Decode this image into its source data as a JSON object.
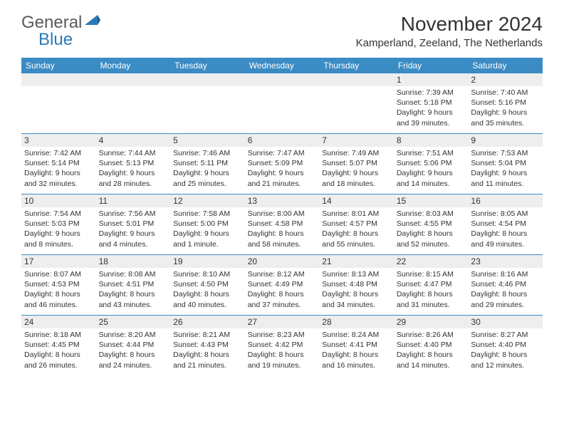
{
  "logo": {
    "part1": "General",
    "part2": "Blue"
  },
  "title": "November 2024",
  "location": "Kamperland, Zeeland, The Netherlands",
  "header_bg": "#3b8bc4",
  "daynum_bg": "#eeeeee",
  "border_color": "#3b8bc4",
  "weekdays": [
    "Sunday",
    "Monday",
    "Tuesday",
    "Wednesday",
    "Thursday",
    "Friday",
    "Saturday"
  ],
  "weeks": [
    [
      null,
      null,
      null,
      null,
      null,
      {
        "n": "1",
        "sunrise": "7:39 AM",
        "sunset": "5:18 PM",
        "daylight": "9 hours and 39 minutes."
      },
      {
        "n": "2",
        "sunrise": "7:40 AM",
        "sunset": "5:16 PM",
        "daylight": "9 hours and 35 minutes."
      }
    ],
    [
      {
        "n": "3",
        "sunrise": "7:42 AM",
        "sunset": "5:14 PM",
        "daylight": "9 hours and 32 minutes."
      },
      {
        "n": "4",
        "sunrise": "7:44 AM",
        "sunset": "5:13 PM",
        "daylight": "9 hours and 28 minutes."
      },
      {
        "n": "5",
        "sunrise": "7:46 AM",
        "sunset": "5:11 PM",
        "daylight": "9 hours and 25 minutes."
      },
      {
        "n": "6",
        "sunrise": "7:47 AM",
        "sunset": "5:09 PM",
        "daylight": "9 hours and 21 minutes."
      },
      {
        "n": "7",
        "sunrise": "7:49 AM",
        "sunset": "5:07 PM",
        "daylight": "9 hours and 18 minutes."
      },
      {
        "n": "8",
        "sunrise": "7:51 AM",
        "sunset": "5:06 PM",
        "daylight": "9 hours and 14 minutes."
      },
      {
        "n": "9",
        "sunrise": "7:53 AM",
        "sunset": "5:04 PM",
        "daylight": "9 hours and 11 minutes."
      }
    ],
    [
      {
        "n": "10",
        "sunrise": "7:54 AM",
        "sunset": "5:03 PM",
        "daylight": "9 hours and 8 minutes."
      },
      {
        "n": "11",
        "sunrise": "7:56 AM",
        "sunset": "5:01 PM",
        "daylight": "9 hours and 4 minutes."
      },
      {
        "n": "12",
        "sunrise": "7:58 AM",
        "sunset": "5:00 PM",
        "daylight": "9 hours and 1 minute."
      },
      {
        "n": "13",
        "sunrise": "8:00 AM",
        "sunset": "4:58 PM",
        "daylight": "8 hours and 58 minutes."
      },
      {
        "n": "14",
        "sunrise": "8:01 AM",
        "sunset": "4:57 PM",
        "daylight": "8 hours and 55 minutes."
      },
      {
        "n": "15",
        "sunrise": "8:03 AM",
        "sunset": "4:55 PM",
        "daylight": "8 hours and 52 minutes."
      },
      {
        "n": "16",
        "sunrise": "8:05 AM",
        "sunset": "4:54 PM",
        "daylight": "8 hours and 49 minutes."
      }
    ],
    [
      {
        "n": "17",
        "sunrise": "8:07 AM",
        "sunset": "4:53 PM",
        "daylight": "8 hours and 46 minutes."
      },
      {
        "n": "18",
        "sunrise": "8:08 AM",
        "sunset": "4:51 PM",
        "daylight": "8 hours and 43 minutes."
      },
      {
        "n": "19",
        "sunrise": "8:10 AM",
        "sunset": "4:50 PM",
        "daylight": "8 hours and 40 minutes."
      },
      {
        "n": "20",
        "sunrise": "8:12 AM",
        "sunset": "4:49 PM",
        "daylight": "8 hours and 37 minutes."
      },
      {
        "n": "21",
        "sunrise": "8:13 AM",
        "sunset": "4:48 PM",
        "daylight": "8 hours and 34 minutes."
      },
      {
        "n": "22",
        "sunrise": "8:15 AM",
        "sunset": "4:47 PM",
        "daylight": "8 hours and 31 minutes."
      },
      {
        "n": "23",
        "sunrise": "8:16 AM",
        "sunset": "4:46 PM",
        "daylight": "8 hours and 29 minutes."
      }
    ],
    [
      {
        "n": "24",
        "sunrise": "8:18 AM",
        "sunset": "4:45 PM",
        "daylight": "8 hours and 26 minutes."
      },
      {
        "n": "25",
        "sunrise": "8:20 AM",
        "sunset": "4:44 PM",
        "daylight": "8 hours and 24 minutes."
      },
      {
        "n": "26",
        "sunrise": "8:21 AM",
        "sunset": "4:43 PM",
        "daylight": "8 hours and 21 minutes."
      },
      {
        "n": "27",
        "sunrise": "8:23 AM",
        "sunset": "4:42 PM",
        "daylight": "8 hours and 19 minutes."
      },
      {
        "n": "28",
        "sunrise": "8:24 AM",
        "sunset": "4:41 PM",
        "daylight": "8 hours and 16 minutes."
      },
      {
        "n": "29",
        "sunrise": "8:26 AM",
        "sunset": "4:40 PM",
        "daylight": "8 hours and 14 minutes."
      },
      {
        "n": "30",
        "sunrise": "8:27 AM",
        "sunset": "4:40 PM",
        "daylight": "8 hours and 12 minutes."
      }
    ]
  ],
  "labels": {
    "sunrise": "Sunrise: ",
    "sunset": "Sunset: ",
    "daylight": "Daylight: "
  }
}
